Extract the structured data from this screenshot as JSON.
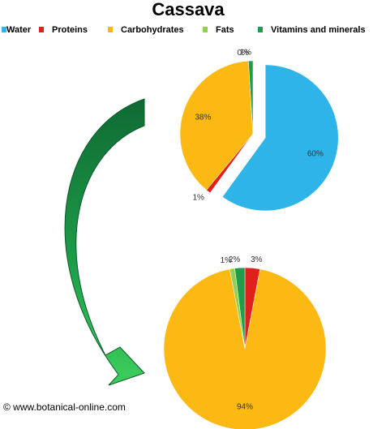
{
  "title": "Cassava",
  "source": "© www.botanical-online.com",
  "chart_data": [
    {
      "type": "pie",
      "categories": [
        "Water",
        "Proteins",
        "Carbohydrates",
        "Fats",
        "Vitamins and minerals"
      ],
      "values": [
        60,
        1,
        38,
        0,
        1
      ],
      "value_labels": [
        "60%",
        "1%",
        "38%",
        "0%",
        "1%"
      ],
      "colors": [
        "#2eb4e8",
        "#e0201b",
        "#fdb913",
        "#92d050",
        "#1e9e4a"
      ],
      "explode": [
        true,
        false,
        false,
        false,
        false
      ]
    },
    {
      "type": "pie",
      "categories": [
        "Proteins",
        "Carbohydrates",
        "Fats",
        "Vitamins and minerals"
      ],
      "values": [
        3,
        94,
        1,
        2
      ],
      "value_labels": [
        "3%",
        "94%",
        "1%",
        "2%"
      ],
      "colors": [
        "#e0201b",
        "#fdb913",
        "#92d050",
        "#1e9e4a"
      ],
      "explode": [
        false,
        false,
        false,
        false
      ]
    }
  ]
}
